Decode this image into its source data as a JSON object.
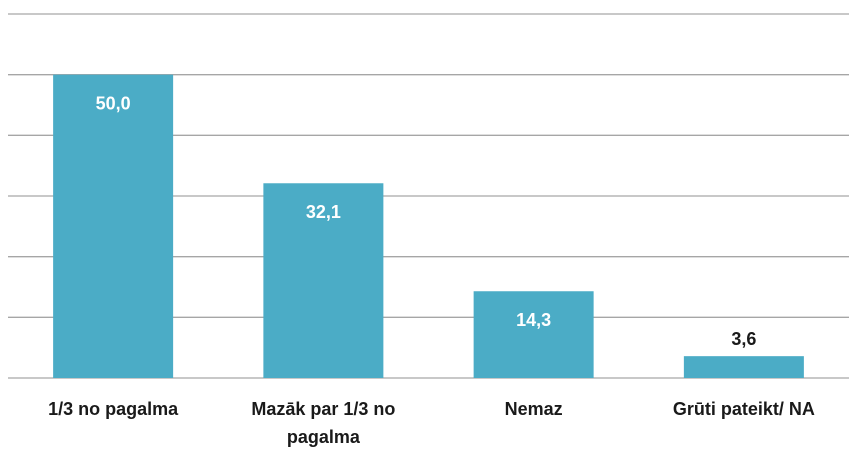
{
  "chart_data": {
    "type": "bar",
    "categories": [
      "1/3 no pagalma",
      "Mazāk par 1/3 no pagalma",
      "Nemaz",
      "Grūti pateikt/ NA"
    ],
    "values": [
      50.0,
      32.1,
      14.3,
      3.6
    ],
    "value_labels": [
      "50,0",
      "32,1",
      "14,3",
      "3,6"
    ],
    "color": "#4bacc6",
    "ylim": [
      0,
      60
    ],
    "yticks": [
      0,
      10,
      20,
      30,
      40,
      50,
      60
    ],
    "grid": true
  }
}
